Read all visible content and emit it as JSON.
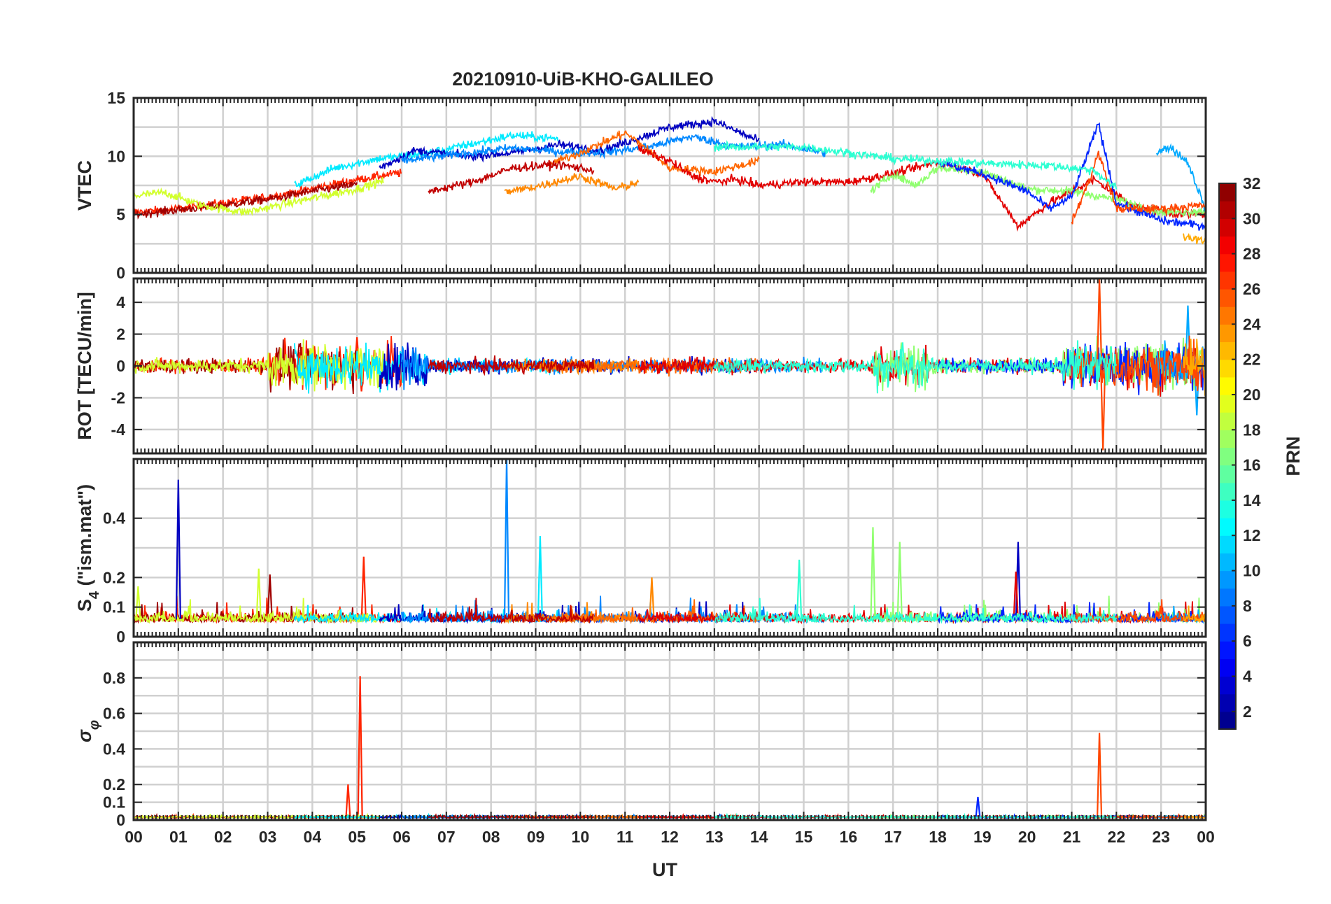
{
  "title": "20210910-UiB-KHO-GALILEO",
  "xlabel": "UT",
  "x_ticks": [
    "00",
    "01",
    "02",
    "03",
    "04",
    "05",
    "06",
    "07",
    "08",
    "09",
    "10",
    "11",
    "12",
    "13",
    "14",
    "15",
    "16",
    "17",
    "18",
    "19",
    "20",
    "21",
    "22",
    "23",
    "00"
  ],
  "colorbar": {
    "label": "PRN",
    "ticks": [
      "2",
      "4",
      "6",
      "8",
      "10",
      "12",
      "14",
      "16",
      "18",
      "20",
      "22",
      "24",
      "26",
      "28",
      "30",
      "32"
    ],
    "colormap": "jet",
    "range": [
      1,
      32
    ]
  },
  "panels": [
    {
      "ylabel": "VTEC",
      "y_range": [
        0,
        15
      ],
      "y_ticks": [
        {
          "v": 0,
          "label": "0"
        },
        {
          "v": 5,
          "label": "5"
        },
        {
          "v": 10,
          "label": "10"
        },
        {
          "v": 15,
          "label": "15"
        }
      ],
      "horizontal_grid": [
        0,
        2.5,
        5,
        7.5,
        10,
        12.5,
        15
      ]
    },
    {
      "ylabel": "ROT [TECU/min]",
      "y_range": [
        -5.5,
        5.5
      ],
      "y_ticks": [
        {
          "v": -4,
          "label": "-4"
        },
        {
          "v": -2,
          "label": "-2"
        },
        {
          "v": 0,
          "label": "0"
        },
        {
          "v": 2,
          "label": "2"
        },
        {
          "v": 4,
          "label": "4"
        }
      ],
      "horizontal_grid": [
        -4,
        -2,
        0,
        2,
        4
      ]
    },
    {
      "ylabel": "S4 (\"ism.mat\")",
      "ylabel_main": "S",
      "ylabel_sub": "4",
      "ylabel_rest": " (\"ism.mat\")",
      "y_range": [
        0,
        0.6
      ],
      "y_ticks": [
        {
          "v": 0,
          "label": "0"
        },
        {
          "v": 0.1,
          "label": "0.1"
        },
        {
          "v": 0.2,
          "label": "0.2"
        },
        {
          "v": 0.4,
          "label": "0.4"
        }
      ],
      "horizontal_grid": [
        0,
        0.1,
        0.2,
        0.3,
        0.4,
        0.5
      ]
    },
    {
      "ylabel": "σφ",
      "ylabel_main": "σ",
      "ylabel_sub": "φ",
      "y_range": [
        0,
        1
      ],
      "y_ticks": [
        {
          "v": 0,
          "label": "0"
        },
        {
          "v": 0.1,
          "label": "0.1"
        },
        {
          "v": 0.2,
          "label": "0.2"
        },
        {
          "v": 0.4,
          "label": "0.4"
        },
        {
          "v": 0.6,
          "label": "0.6"
        },
        {
          "v": 0.8,
          "label": "0.8"
        }
      ],
      "horizontal_grid": [
        0,
        0.1,
        0.2,
        0.3,
        0.4,
        0.5,
        0.6,
        0.7,
        0.8,
        0.9
      ]
    }
  ],
  "chart_data": {
    "type": "line",
    "title": "20210910-UiB-KHO-GALILEO",
    "xlabel": "UT",
    "x_range_hours": [
      0,
      24
    ],
    "color_by": "PRN",
    "series": [
      {
        "prn": 27,
        "vtec": {
          "x": [
            0,
            1,
            2,
            3,
            4,
            5,
            6
          ],
          "y": [
            5.2,
            5.5,
            6.0,
            6.5,
            7.2,
            8.0,
            8.6
          ]
        },
        "rot_spikes": [
          {
            "x": 5.0,
            "y": 1.8
          },
          {
            "x": 5.1,
            "y": -1.6
          }
        ],
        "s4_spikes": [
          {
            "x": 5.15,
            "y": 0.27
          }
        ],
        "sigma_phi_spikes": [
          {
            "x": 5.07,
            "y": 0.81
          },
          {
            "x": 4.8,
            "y": 0.2
          }
        ]
      },
      {
        "prn": 31,
        "vtec": {
          "x": [
            0,
            1,
            2,
            3,
            4,
            5
          ],
          "y": [
            5.0,
            5.4,
            5.8,
            6.3,
            7.0,
            7.6
          ]
        },
        "s4_spikes": [
          {
            "x": 3.05,
            "y": 0.21
          }
        ]
      },
      {
        "prn": 19,
        "vtec": {
          "x": [
            0,
            0.7,
            1.5,
            2.5,
            3,
            4,
            5,
            5.6
          ],
          "y": [
            6.6,
            6.9,
            5.8,
            5.2,
            5.6,
            6.4,
            7.2,
            7.9
          ]
        },
        "s4_spikes": [
          {
            "x": 2.8,
            "y": 0.23
          },
          {
            "x": 0.1,
            "y": 0.17
          }
        ]
      },
      {
        "prn": 12,
        "vtec": {
          "x": [
            3.6,
            4.5,
            5.5,
            6.5,
            7.5,
            8.5,
            9.5
          ],
          "y": [
            7.5,
            9.0,
            9.8,
            10.2,
            11.0,
            11.8,
            11.5
          ]
        },
        "s4_spikes": [
          {
            "x": 9.1,
            "y": 0.34
          }
        ]
      },
      {
        "prn": 3,
        "vtec": {
          "x": [
            5.5,
            6.3,
            7.5,
            8.5,
            9.5,
            10.5,
            12,
            13,
            14
          ],
          "y": [
            9.0,
            10.5,
            10.0,
            10.3,
            11.0,
            10.5,
            12.5,
            13.0,
            11.3
          ]
        },
        "s4_spikes": [
          {
            "x": 1.0,
            "y": 0.53
          },
          {
            "x": 19.8,
            "y": 0.32
          }
        ]
      },
      {
        "prn": 9,
        "vtec": {
          "x": [
            6.0,
            7.5,
            8.5,
            9.5,
            10.5,
            11.5,
            12.5,
            13.5,
            14.5,
            15.5
          ],
          "y": [
            9.6,
            10.3,
            10.7,
            10.4,
            10.3,
            10.8,
            11.7,
            10.8,
            11.0,
            10.3
          ]
        },
        "s4_spikes": [
          {
            "x": 8.35,
            "y": 0.6
          }
        ]
      },
      {
        "prn": 24,
        "vtec": {
          "x": [
            8.3,
            9.0,
            10.0,
            10.8,
            11.3
          ],
          "y": [
            6.9,
            7.4,
            8.3,
            7.2,
            7.8
          ]
        },
        "s4_spikes": [
          {
            "x": 11.6,
            "y": 0.2
          }
        ]
      },
      {
        "prn": 25,
        "vtec": {
          "x": [
            9.3,
            10.0,
            11.0,
            11.3,
            12.0,
            13.0,
            14.0
          ],
          "y": [
            9.3,
            10.3,
            12.0,
            11.2,
            9.0,
            8.7,
            9.6
          ]
        }
      },
      {
        "prn": 30,
        "vtec": {
          "x": [
            6.6,
            7.5,
            8.5,
            9.5,
            10.3
          ],
          "y": [
            7.0,
            7.7,
            9.0,
            9.3,
            8.8
          ]
        }
      },
      {
        "prn": 29,
        "vtec": {
          "x": [
            11.3,
            12.0,
            12.5,
            13.0,
            13.5,
            14.0,
            15.0,
            16.0,
            17.0,
            18.0,
            19.0,
            19.8,
            20.5,
            21.5,
            22.5,
            23.5,
            24.0
          ],
          "y": [
            10.6,
            9.6,
            8.3,
            7.8,
            8.0,
            7.5,
            7.8,
            7.8,
            8.5,
            9.5,
            8.5,
            4.0,
            6.0,
            8.0,
            5.5,
            5.0,
            5.1
          ]
        },
        "s4_spikes": [
          {
            "x": 19.75,
            "y": 0.22
          }
        ]
      },
      {
        "prn": 17,
        "vtec": {
          "x": [
            16.5,
            17.0,
            17.5,
            18.0,
            19.0,
            20.0,
            21.0,
            22.0,
            23.0,
            24.0
          ],
          "y": [
            7.0,
            8.5,
            7.5,
            9.0,
            8.7,
            7.2,
            7.0,
            6.3,
            5.2,
            5.3
          ]
        },
        "s4_spikes": [
          {
            "x": 16.55,
            "y": 0.37
          },
          {
            "x": 17.15,
            "y": 0.32
          }
        ]
      },
      {
        "prn": 6,
        "vtec": {
          "x": [
            18.0,
            19.0,
            20.0,
            20.5,
            21.0,
            21.6,
            22.0,
            23.0,
            24.0
          ],
          "y": [
            9.5,
            8.5,
            7.0,
            5.5,
            6.5,
            12.8,
            6.0,
            4.5,
            4.0
          ]
        },
        "sigma_phi_spikes": [
          {
            "x": 18.9,
            "y": 0.13
          }
        ]
      },
      {
        "prn": 10,
        "vtec": {
          "x": [
            22.9,
            23.2,
            23.6,
            24.0
          ],
          "y": [
            10.3,
            10.8,
            9.5,
            5.4
          ]
        },
        "rot_spikes": [
          {
            "x": 23.6,
            "y": 3.8
          },
          {
            "x": 23.8,
            "y": -3.1
          }
        ]
      },
      {
        "prn": 26,
        "vtec": {
          "x": [
            21.0,
            21.4,
            21.6,
            22.0,
            23.0,
            24.0
          ],
          "y": [
            4.3,
            8.0,
            10.3,
            5.5,
            5.5,
            5.8
          ]
        },
        "rot_spikes": [
          {
            "x": 21.62,
            "y": 5.5
          },
          {
            "x": 21.7,
            "y": -5.3
          }
        ],
        "sigma_phi_spikes": [
          {
            "x": 21.62,
            "y": 0.49
          }
        ]
      },
      {
        "prn": 23,
        "vtec": {
          "x": [
            23.5,
            24.0
          ],
          "y": [
            3.0,
            2.8
          ]
        }
      },
      {
        "prn": 14,
        "vtec": {
          "x": [
            13.0,
            15.0,
            17.0,
            19.0,
            20.5,
            21.5,
            22.0
          ],
          "y": [
            10.8,
            10.8,
            9.8,
            9.4,
            9.2,
            8.8,
            7.2
          ]
        },
        "s4_spikes": [
          {
            "x": 14.9,
            "y": 0.26
          }
        ]
      }
    ],
    "panels": [
      {
        "name": "VTEC",
        "ylim": [
          0,
          15
        ]
      },
      {
        "name": "ROT [TECU/min]",
        "ylim": [
          -5.5,
          5.5
        ]
      },
      {
        "name": "S4 (\"ism.mat\")",
        "ylim": [
          0,
          0.6
        ]
      },
      {
        "name": "σφ",
        "ylim": [
          0,
          1
        ]
      }
    ]
  }
}
